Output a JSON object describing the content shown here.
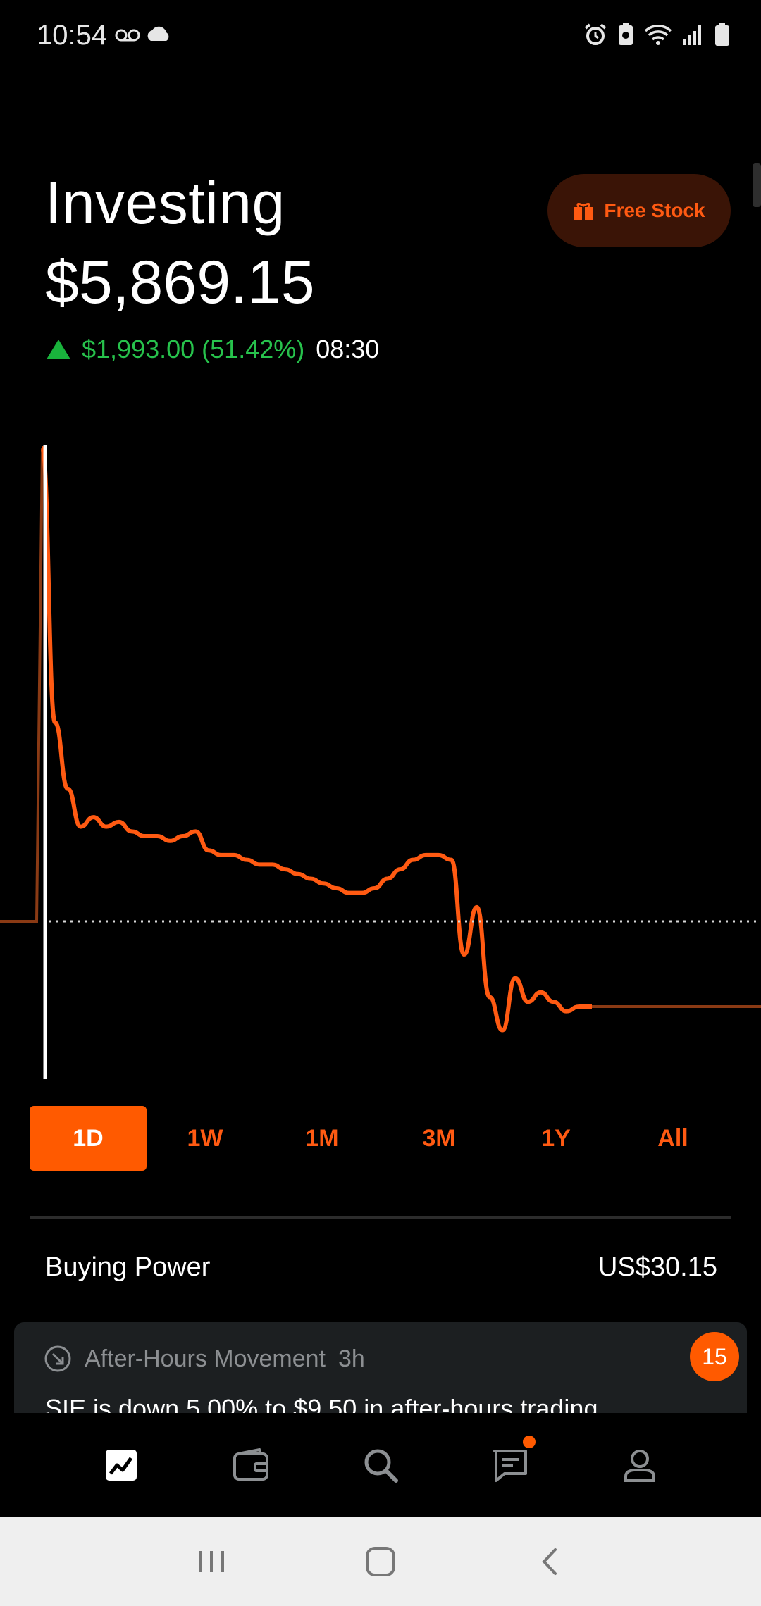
{
  "status_bar": {
    "time": "10:54",
    "left_icons": [
      "voicemail-icon",
      "cloud-icon"
    ],
    "right_icons": [
      "alarm-icon",
      "battery-saver-icon",
      "wifi-icon",
      "signal-icon",
      "battery-icon"
    ]
  },
  "header": {
    "title": "Investing",
    "portfolio_value": "$5,869.15",
    "change_amount": "$1,993.00 (51.42%)",
    "change_time": "08:30",
    "free_stock_label": "Free Stock"
  },
  "chart_data": {
    "type": "line",
    "title": "",
    "xlabel": "",
    "ylabel": "",
    "baseline_style": "dotted",
    "series": [
      {
        "values": [
          0,
          0,
          100,
          42,
          28,
          20,
          22,
          20,
          21,
          19,
          18,
          18,
          17,
          18,
          19,
          15,
          14,
          14,
          13,
          12,
          12,
          11,
          10,
          9,
          8,
          7,
          6,
          6,
          7,
          9,
          11,
          13,
          14,
          14,
          13,
          -7,
          3,
          -16,
          -23,
          -12,
          -17,
          -15,
          -17,
          -19,
          -18,
          -18
        ]
      }
    ],
    "colors": {
      "line": "#ff5a12",
      "line_muted": "#8a3a14",
      "cursor": "#ffffff",
      "baseline": "#d8d8d8"
    }
  },
  "ranges": {
    "items": [
      "1D",
      "1W",
      "1M",
      "3M",
      "1Y",
      "All"
    ],
    "active": "1D"
  },
  "buying_power": {
    "label": "Buying Power",
    "value": "US$30.15"
  },
  "card": {
    "category": "After-Hours Movement",
    "age": "3h",
    "body": "SIE is down 5.00% to $9.50 in after-hours trading",
    "badge": "15"
  },
  "bottom_nav": {
    "items": [
      "portfolio-icon",
      "wallet-icon",
      "search-icon",
      "messages-icon",
      "account-icon"
    ],
    "active": "portfolio-icon"
  },
  "system_nav": [
    "recents-icon",
    "home-icon",
    "back-icon"
  ],
  "colors": {
    "accent": "#ff5a00",
    "positive": "#27c24c",
    "background": "#000000"
  }
}
